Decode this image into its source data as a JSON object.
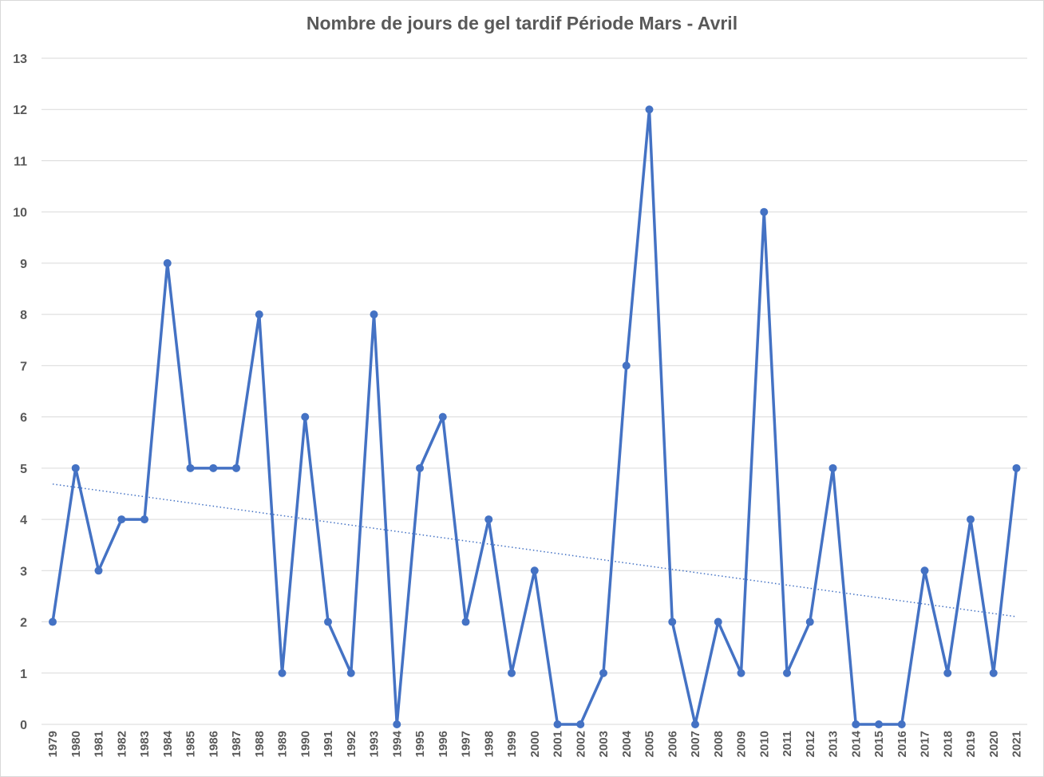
{
  "chart_data": {
    "type": "line",
    "title": "Nombre de jours de gel tardif Période Mars - Avril",
    "xlabel": "",
    "ylabel": "",
    "ylim": [
      0,
      13
    ],
    "yticks": [
      "0",
      "1",
      "2",
      "3",
      "4",
      "5",
      "6",
      "7",
      "8",
      "9",
      "10",
      "11",
      "12",
      "13"
    ],
    "grid": true,
    "categories": [
      "1979",
      "1980",
      "1981",
      "1982",
      "1983",
      "1984",
      "1985",
      "1986",
      "1987",
      "1988",
      "1989",
      "1990",
      "1991",
      "1992",
      "1993",
      "1994",
      "1995",
      "1996",
      "1997",
      "1998",
      "1999",
      "2000",
      "2001",
      "2002",
      "2003",
      "2004",
      "2005",
      "2006",
      "2007",
      "2008",
      "2009",
      "2010",
      "2011",
      "2012",
      "2013",
      "2014",
      "2015",
      "2016",
      "2017",
      "2018",
      "2019",
      "2020",
      "2021"
    ],
    "series": [
      {
        "values": [
          2,
          5,
          3,
          4,
          4,
          9,
          5,
          5,
          5,
          8,
          1,
          6,
          2,
          1,
          8,
          0,
          5,
          6,
          2,
          4,
          1,
          3,
          0,
          0,
          1,
          7,
          12,
          2,
          0,
          2,
          1,
          10,
          1,
          2,
          5,
          0,
          0,
          0,
          3,
          1,
          4,
          1,
          5
        ],
        "color": "#4472c4"
      }
    ],
    "trendline": {
      "type": "linear",
      "style": "dotted",
      "color": "#4472c4"
    }
  }
}
